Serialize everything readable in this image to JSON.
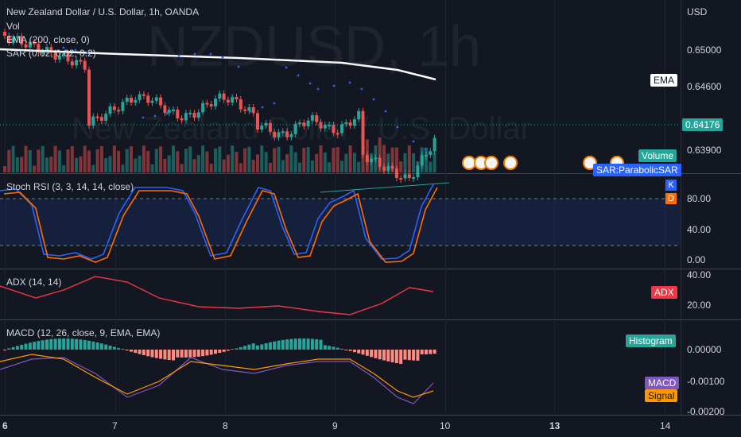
{
  "symbol_title": "New Zealand Dollar / U.S. Dollar, 1h, OANDA",
  "watermark": {
    "ticker": "NZDUSD, 1h",
    "name": "New Zealand Dollar / U.S. Dollar"
  },
  "indicators": {
    "vol": "Vol",
    "ema": "EMA (200, close, 0)",
    "sar": "SAR (0.02, 0.02, 0.2)"
  },
  "currency": "USD",
  "price_axis": [
    "0.65000",
    "0.64600",
    "0.63900"
  ],
  "ema_tag": "EMA",
  "last_price": "0.64176",
  "volume_tag": "Volume",
  "sar_tag": "SAR:ParabolicSAR",
  "stoch": {
    "label": "Stoch RSI (3, 3, 14, 14, close)",
    "axis": [
      "80.00",
      "40.00",
      "0.00"
    ],
    "k": "K",
    "d": "D"
  },
  "adx": {
    "label": "ADX (14, 14)",
    "axis": [
      "40.00",
      "20.00"
    ],
    "tag": "ADX"
  },
  "macd": {
    "label": "MACD (12, 26, close, 9, EMA, EMA)",
    "axis": [
      "0.00000",
      "-0.00100",
      "-0.00200"
    ],
    "hist_tag": "Histogram",
    "macd_tag": "MACD",
    "signal_tag": "Signal"
  },
  "time_axis": [
    "6",
    "7",
    "8",
    "9",
    "10",
    "13",
    "14"
  ],
  "colors": {
    "up": "#26a69a",
    "down": "#ef5350",
    "ema": "#ffffff",
    "sar": "#2962ff",
    "k": "#2962ff",
    "d": "#ff6d00",
    "adx": "#f23645",
    "macd": "#7e57c2",
    "signal": "#ff9800"
  }
}
